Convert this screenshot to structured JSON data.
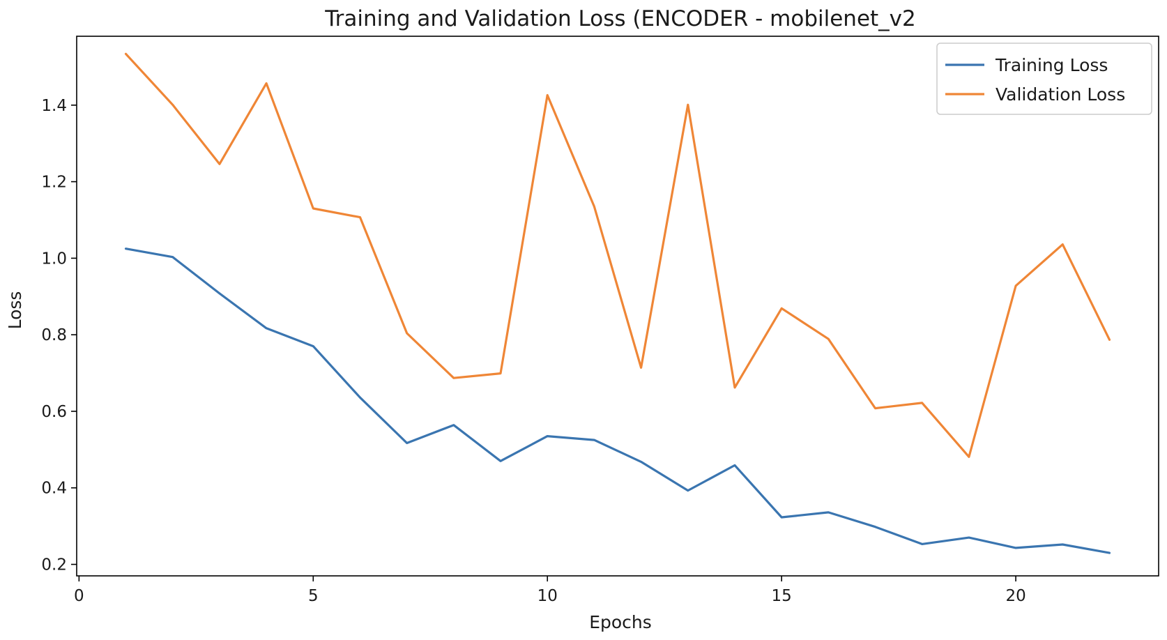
{
  "chart_data": {
    "type": "line",
    "title": "Training and Validation Loss (ENCODER - mobilenet_v2",
    "xlabel": "Epochs",
    "ylabel": "Loss",
    "xlim": [
      -0.05,
      23.05
    ],
    "ylim": [
      0.17,
      1.58
    ],
    "xticks": [
      0,
      5,
      10,
      15,
      20
    ],
    "yticks": [
      0.2,
      0.4,
      0.6,
      0.8,
      1.0,
      1.2,
      1.4
    ],
    "ytick_labels": [
      "0.2",
      "0.4",
      "0.6",
      "0.8",
      "1.0",
      "1.2",
      "1.4"
    ],
    "grid": false,
    "legend_position": "top-right",
    "x": [
      1,
      2,
      3,
      4,
      5,
      6,
      7,
      8,
      9,
      10,
      11,
      12,
      13,
      14,
      15,
      16,
      17,
      18,
      19,
      20,
      21,
      22
    ],
    "series": [
      {
        "name": "Training Loss",
        "color": "#3a75b0",
        "values": [
          1.025,
          1.003,
          0.908,
          0.817,
          0.77,
          0.636,
          0.517,
          0.564,
          0.47,
          0.535,
          0.525,
          0.468,
          0.393,
          0.459,
          0.323,
          0.336,
          0.298,
          0.253,
          0.27,
          0.243,
          0.252,
          0.23
        ]
      },
      {
        "name": "Validation Loss",
        "color": "#ef8636",
        "values": [
          1.534,
          1.401,
          1.246,
          1.457,
          1.13,
          1.107,
          0.804,
          0.687,
          0.699,
          1.426,
          1.135,
          0.714,
          1.401,
          0.662,
          0.869,
          0.789,
          0.608,
          0.622,
          0.481,
          0.928,
          1.036,
          0.787
        ]
      }
    ]
  }
}
